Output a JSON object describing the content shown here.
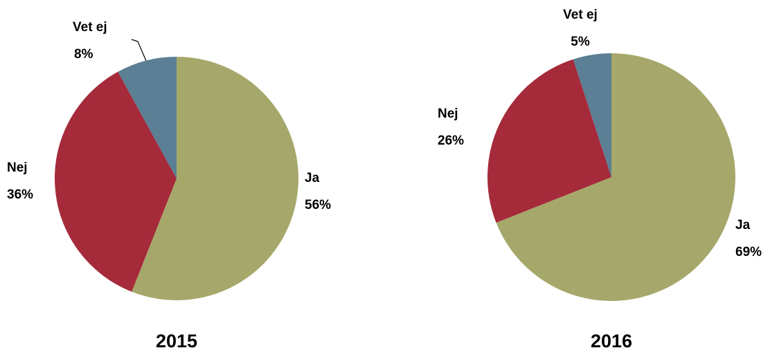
{
  "chart_data": [
    {
      "type": "pie",
      "title": "2015",
      "categories": [
        "Ja",
        "Nej",
        "Vet ej"
      ],
      "values": [
        56,
        36,
        8
      ],
      "value_labels": [
        "56%",
        "36%",
        "8%"
      ],
      "colors": [
        "#a5a86a",
        "#a52a3a",
        "#5b7f94"
      ]
    },
    {
      "type": "pie",
      "title": "2016",
      "categories": [
        "Ja",
        "Nej",
        "Vet ej"
      ],
      "values": [
        69,
        26,
        5
      ],
      "value_labels": [
        "69%",
        "26%",
        "5%"
      ],
      "colors": [
        "#a5a86a",
        "#a52a3a",
        "#5b7f94"
      ]
    }
  ]
}
